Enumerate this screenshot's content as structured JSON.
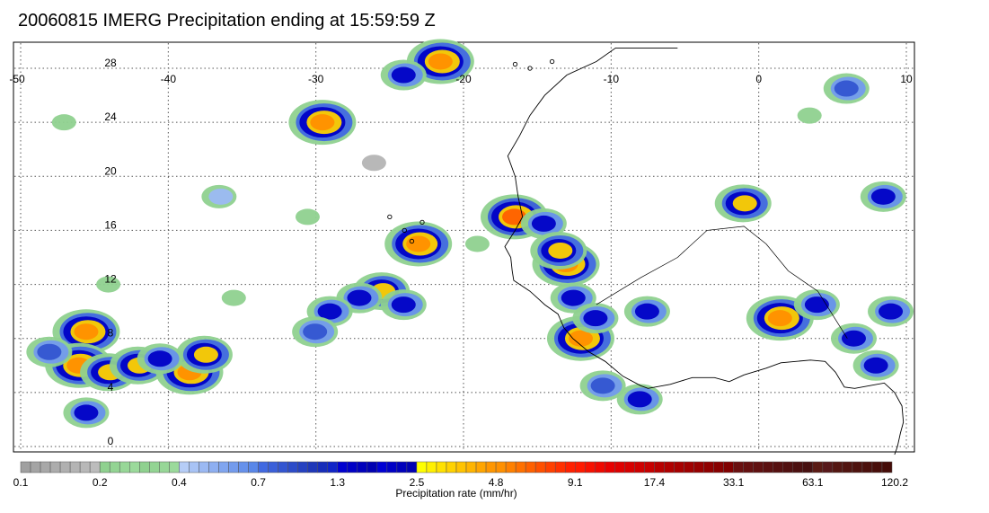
{
  "title": "20060815 IMERG Precipitation ending at 15:59:59 Z",
  "map": {
    "lon_range": [
      -50,
      10
    ],
    "lat_range": [
      -1,
      30
    ],
    "lon_ticks": [
      "-50",
      "-40",
      "-30",
      "-20",
      "-10",
      "0",
      "10"
    ],
    "lat_ticks": [
      "28",
      "24",
      "20",
      "16",
      "12",
      "8",
      "4",
      "0"
    ],
    "gridlines": "dotted"
  },
  "colorbar": {
    "label": "Precipitation rate (mm/hr)",
    "tick_labels": [
      "0.1",
      "0.2",
      "0.4",
      "0.7",
      "1.3",
      "2.5",
      "4.8",
      "9.1",
      "17.4",
      "33.1",
      "63.1",
      "120.2"
    ],
    "group_colors": [
      [
        "#a0a0a0",
        "#a4a4a4",
        "#a8a8a8",
        "#acacac",
        "#b0b0b0",
        "#b4b4b4",
        "#b8b8b8",
        "#bcbcbc"
      ],
      [
        "#8fd18f",
        "#93d493",
        "#97d797",
        "#9bda9b",
        "#8fd18f",
        "#93d493",
        "#97d797",
        "#9bda9b"
      ],
      [
        "#b6cdf7",
        "#a8c3f5",
        "#9bb9f3",
        "#8eaff1",
        "#80a5ef",
        "#739bed",
        "#6691eb",
        "#5987e9"
      ],
      [
        "#4169e1",
        "#3a5fd9",
        "#3355d1",
        "#2c4bc9",
        "#2541c1",
        "#1e37b9",
        "#172dba",
        "#1024c8"
      ],
      [
        "#0000d0",
        "#0000c6",
        "#0000bc",
        "#0000b2",
        "#0000d4",
        "#0000c6",
        "#0000bc",
        "#0000b2"
      ],
      [
        "#ffff00",
        "#fff000",
        "#ffe100",
        "#ffd200",
        "#ffc300",
        "#ffb400",
        "#ffa500",
        "#ff9600"
      ],
      [
        "#ff9000",
        "#ff8000",
        "#ff7000",
        "#ff6000",
        "#ff5000",
        "#ff4000",
        "#ff3000",
        "#ff2000"
      ],
      [
        "#ff1a00",
        "#f71000",
        "#ef0800",
        "#e70000",
        "#df0000",
        "#d70000",
        "#cf0000",
        "#c70000"
      ],
      [
        "#b80000",
        "#b00000",
        "#a80000",
        "#a00000",
        "#980000",
        "#900000",
        "#880000",
        "#800000"
      ],
      [
        "#6a1010",
        "#651010",
        "#601010",
        "#5b1010",
        "#561010",
        "#511010",
        "#4c1010",
        "#471010"
      ],
      [
        "#5a1a14",
        "#57181a",
        "#541612",
        "#511410",
        "#4e120e",
        "#4b100c",
        "#480e0a",
        "#450c08"
      ]
    ]
  },
  "precip_cells": [
    {
      "lon": -29.5,
      "lat": 24.0,
      "rate": 9.1
    },
    {
      "lon": -21.5,
      "lat": 28.5,
      "rate": 9.1
    },
    {
      "lon": -24.0,
      "lat": 27.5,
      "rate": 2.5
    },
    {
      "lon": -23.0,
      "lat": 15.0,
      "rate": 9.1
    },
    {
      "lon": -25.5,
      "lat": 11.5,
      "rate": 4.8
    },
    {
      "lon": -24.0,
      "lat": 10.5,
      "rate": 2.5
    },
    {
      "lon": -27.0,
      "lat": 11.0,
      "rate": 2.5
    },
    {
      "lon": -29.0,
      "lat": 10.0,
      "rate": 2.5
    },
    {
      "lon": -30.0,
      "lat": 8.5,
      "rate": 1.3
    },
    {
      "lon": -45.5,
      "lat": 8.5,
      "rate": 9.1
    },
    {
      "lon": -46.0,
      "lat": 6.0,
      "rate": 9.1
    },
    {
      "lon": -44.0,
      "lat": 5.5,
      "rate": 4.8
    },
    {
      "lon": -42.0,
      "lat": 6.0,
      "rate": 4.8
    },
    {
      "lon": -38.5,
      "lat": 5.5,
      "rate": 9.1
    },
    {
      "lon": -37.5,
      "lat": 6.8,
      "rate": 4.8
    },
    {
      "lon": -40.5,
      "lat": 6.5,
      "rate": 2.5
    },
    {
      "lon": -48.0,
      "lat": 7.0,
      "rate": 1.3
    },
    {
      "lon": -45.5,
      "lat": 2.5,
      "rate": 2.5
    },
    {
      "lon": -16.5,
      "lat": 17.0,
      "rate": 17.4
    },
    {
      "lon": -14.5,
      "lat": 16.5,
      "rate": 2.5
    },
    {
      "lon": -13.0,
      "lat": 13.5,
      "rate": 9.1
    },
    {
      "lon": -13.5,
      "lat": 14.5,
      "rate": 4.8
    },
    {
      "lon": -12.5,
      "lat": 11.0,
      "rate": 2.5
    },
    {
      "lon": -12.0,
      "lat": 8.0,
      "rate": 9.1
    },
    {
      "lon": -11.0,
      "lat": 9.5,
      "rate": 2.5
    },
    {
      "lon": -7.5,
      "lat": 10.0,
      "rate": 2.5
    },
    {
      "lon": -10.5,
      "lat": 4.5,
      "rate": 1.3
    },
    {
      "lon": -8.0,
      "lat": 3.5,
      "rate": 2.5
    },
    {
      "lon": -1.0,
      "lat": 18.0,
      "rate": 4.8
    },
    {
      "lon": 1.5,
      "lat": 9.5,
      "rate": 9.1
    },
    {
      "lon": 4.0,
      "lat": 10.5,
      "rate": 2.5
    },
    {
      "lon": 6.5,
      "lat": 8.0,
      "rate": 2.5
    },
    {
      "lon": 8.0,
      "lat": 6.0,
      "rate": 2.5
    },
    {
      "lon": 9.0,
      "lat": 10.0,
      "rate": 2.5
    },
    {
      "lon": 8.5,
      "lat": 18.5,
      "rate": 2.5
    },
    {
      "lon": 6.0,
      "lat": 26.5,
      "rate": 1.3
    },
    {
      "lon": -30.5,
      "lat": 17.0,
      "rate": 0.4
    },
    {
      "lon": -36.5,
      "lat": 18.5,
      "rate": 0.7
    },
    {
      "lon": -44.0,
      "lat": 12.0,
      "rate": 0.4
    },
    {
      "lon": -35.5,
      "lat": 11.0,
      "rate": 0.4
    },
    {
      "lon": -19.0,
      "lat": 15.0,
      "rate": 0.4
    },
    {
      "lon": -47.0,
      "lat": 24.0,
      "rate": 0.4
    },
    {
      "lon": -26.0,
      "lat": 21.0,
      "rate": 0.2
    },
    {
      "lon": 3.5,
      "lat": 24.5,
      "rate": 0.4
    }
  ]
}
